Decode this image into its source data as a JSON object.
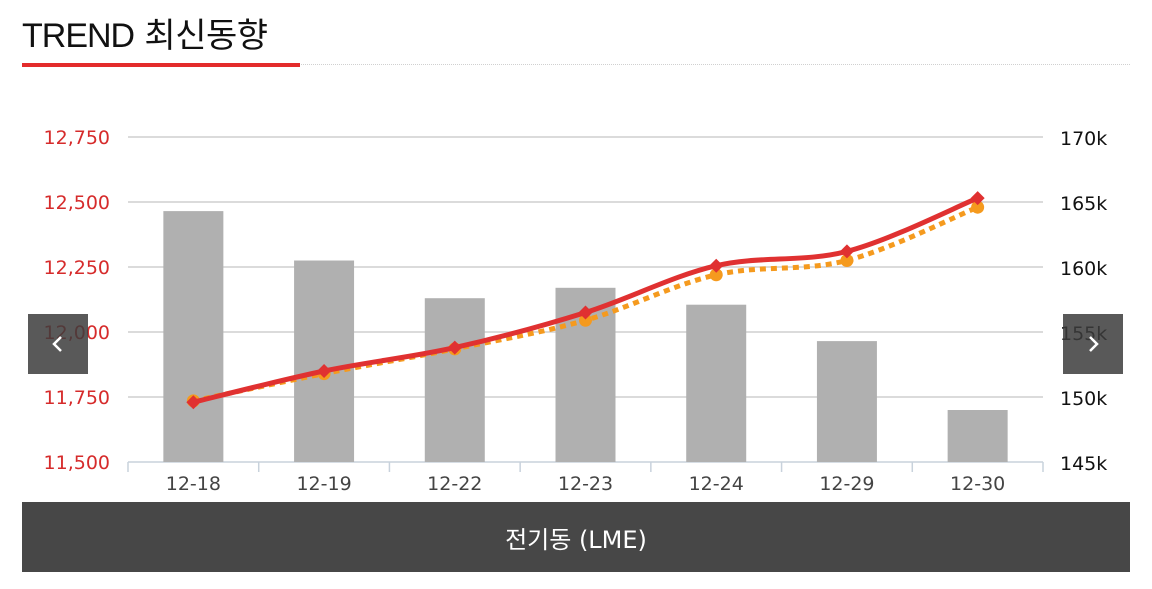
{
  "header": {
    "title_en": "TREND",
    "title_ko": "최신동향"
  },
  "footer": {
    "label": "전기동 (LME)"
  },
  "nav": {
    "prev_icon": "chevron-left-icon",
    "next_icon": "chevron-right-icon"
  },
  "colors": {
    "accent": "#e32b2b",
    "bar": "#b0b0b0",
    "line_main": "#e03131",
    "line_secondary": "#f59a1e",
    "left_axis_text": "#d62b2b",
    "footer_bg": "#474747"
  },
  "chart_data": {
    "type": "bar",
    "categories": [
      "12-18",
      "12-19",
      "12-22",
      "12-23",
      "12-24",
      "12-29",
      "12-30"
    ],
    "y_left": {
      "range": [
        11500,
        12750
      ],
      "ticks": [
        "11,500",
        "11,750",
        "12,000",
        "12,250",
        "12,500",
        "12,750"
      ],
      "tick_values": [
        11500,
        11750,
        12000,
        12250,
        12500,
        12750
      ]
    },
    "y_right": {
      "range": [
        145000,
        170000
      ],
      "ticks": [
        "145k",
        "150k",
        "155k",
        "160k",
        "165k",
        "170k"
      ],
      "tick_values": [
        145000,
        150000,
        155000,
        160000,
        165000,
        170000
      ]
    },
    "series": [
      {
        "kind": "bar",
        "axis": "right",
        "values": [
          164300,
          160500,
          157600,
          158400,
          157100,
          154300,
          149000
        ]
      },
      {
        "kind": "line",
        "axis": "left",
        "style": "solid",
        "marker": "diamond",
        "values": [
          11730,
          11850,
          11940,
          12075,
          12255,
          12310,
          12515
        ]
      },
      {
        "kind": "line",
        "axis": "left",
        "style": "dotted",
        "marker": "circle",
        "values": [
          11735,
          11840,
          11935,
          12045,
          12220,
          12275,
          12480
        ]
      }
    ],
    "grid": true,
    "legend": "none"
  }
}
